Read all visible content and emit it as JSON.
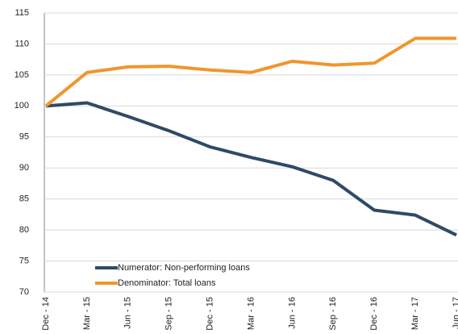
{
  "chart_data": {
    "type": "line",
    "categories": [
      "Dec - 14",
      "Mar - 15",
      "Jun - 15",
      "Sep - 15",
      "Dec - 15",
      "Mar - 16",
      "Jun - 16",
      "Sep - 16",
      "Dec - 16",
      "Mar - 17",
      "Jun - 17"
    ],
    "series": [
      {
        "name": "Numerator: Non-performing loans",
        "color": "#2e4a66",
        "values": [
          100,
          100.5,
          98.3,
          96,
          93.4,
          91.7,
          90.2,
          88,
          83.2,
          82.4,
          79.2
        ]
      },
      {
        "name": "Denominator: Total loans",
        "color": "#f0962c",
        "values": [
          100,
          105.4,
          106.3,
          106.4,
          105.8,
          105.4,
          107.2,
          106.6,
          106.9,
          110.9,
          110.9
        ]
      }
    ],
    "ylim": [
      70,
      115
    ],
    "yticks": [
      70,
      75,
      80,
      85,
      90,
      95,
      100,
      105,
      110,
      115
    ],
    "grid": true,
    "legend": "lower-left"
  }
}
